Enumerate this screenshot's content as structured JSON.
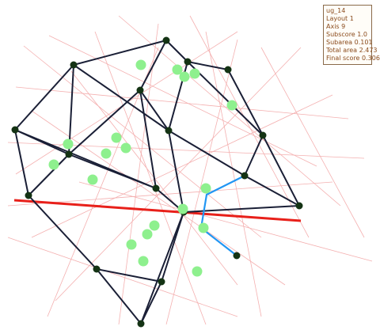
{
  "info": {
    "title": "ug_14",
    "layout": "Layout 1",
    "axis": "Axis 9",
    "subscore": "Subscore 1.0",
    "subarea": "Subarea 0.101",
    "total_area": "Total area 2.473",
    "final_score": "Final score 0.306"
  },
  "colors": {
    "background": "#ffffff",
    "edge": "#1a1f36",
    "node": "#143314",
    "highlight_node": "#8ef08e",
    "symmetry_axis": "#e8201a",
    "guide_lines": "#f4b0b0",
    "highlight_path": "#2196f3",
    "panel_text": "#8a4b1c"
  }
}
